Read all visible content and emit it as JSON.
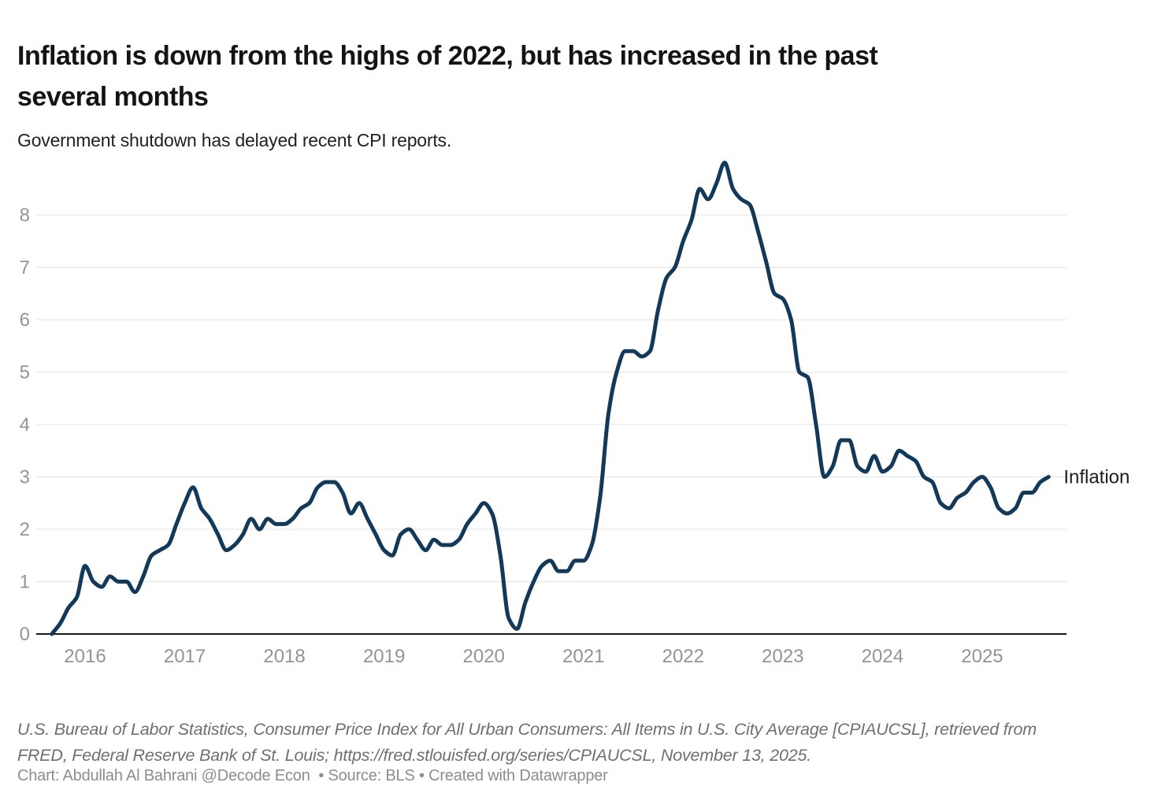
{
  "header": {
    "title": "Inflation is down from the highs of 2022, but has increased in the past several months",
    "title_lines": [
      "Inflation is down from the highs of 2022, but has increased in the past",
      "several months"
    ],
    "subtitle": "Government shutdown has delayed recent CPI reports."
  },
  "chart_data": {
    "type": "line",
    "title": "Inflation is down from the highs of 2022, but has increased in the past several months",
    "subtitle": "Government shutdown has delayed recent CPI reports.",
    "xlabel": "",
    "ylabel": "",
    "x_start": "2015-09",
    "x_end": "2025-09",
    "frequency": "monthly",
    "x_ticks": [
      "2016",
      "2017",
      "2018",
      "2019",
      "2020",
      "2021",
      "2022",
      "2023",
      "2024",
      "2025"
    ],
    "y_ticks": [
      0,
      1,
      2,
      3,
      4,
      5,
      6,
      7,
      8
    ],
    "ylim": [
      0,
      9.3
    ],
    "grid": "horizontal",
    "legend_position": "end-of-line-label",
    "colors": {
      "line": "#12395a",
      "grid": "#e3e3e3",
      "axis": "#1a1a1a",
      "tick_label": "#949494",
      "series_label": "#1c1c1c"
    },
    "series": [
      {
        "name": "Inflation",
        "color": "#12395a",
        "values": [
          0.0,
          0.2,
          0.5,
          0.7,
          1.3,
          1.0,
          0.9,
          1.1,
          1.0,
          1.0,
          0.8,
          1.1,
          1.5,
          1.6,
          1.7,
          2.1,
          2.5,
          2.8,
          2.4,
          2.2,
          1.9,
          1.6,
          1.7,
          1.9,
          2.2,
          2.0,
          2.2,
          2.1,
          2.1,
          2.2,
          2.4,
          2.5,
          2.8,
          2.9,
          2.9,
          2.7,
          2.3,
          2.5,
          2.2,
          1.9,
          1.6,
          1.5,
          1.9,
          2.0,
          1.8,
          1.6,
          1.8,
          1.7,
          1.7,
          1.8,
          2.1,
          2.3,
          2.5,
          2.3,
          1.5,
          0.3,
          0.1,
          0.6,
          1.0,
          1.3,
          1.4,
          1.2,
          1.2,
          1.4,
          1.4,
          1.7,
          2.6,
          4.2,
          5.0,
          5.4,
          5.4,
          5.3,
          5.4,
          6.2,
          6.8,
          7.0,
          7.5,
          7.9,
          8.5,
          8.3,
          8.6,
          9.0,
          8.5,
          8.3,
          8.2,
          7.7,
          7.1,
          6.5,
          6.4,
          6.0,
          5.0,
          4.9,
          4.0,
          3.0,
          3.2,
          3.7,
          3.7,
          3.2,
          3.1,
          3.4,
          3.1,
          3.2,
          3.5,
          3.4,
          3.3,
          3.0,
          2.9,
          2.5,
          2.4,
          2.6,
          2.7,
          2.9,
          3.0,
          2.8,
          2.4,
          2.3,
          2.4,
          2.7,
          2.7,
          2.9,
          3.0
        ]
      }
    ]
  },
  "footer": {
    "source_lines": [
      "U.S. Bureau of Labor Statistics, Consumer Price Index for All Urban Consumers: All Items in U.S. City Average [CPIAUCSL], retrieved from",
      "FRED, Federal Reserve Bank of St. Louis; https://fred.stlouisfed.org/series/CPIAUCSL, November 13, 2025."
    ],
    "source_note": "U.S. Bureau of Labor Statistics, Consumer Price Index for All Urban Consumers: All Items in U.S. City Average [CPIAUCSL], retrieved from FRED, Federal Reserve Bank of St. Louis; https://fred.stlouisfed.org/series/CPIAUCSL, November 13, 2025.",
    "credit": "Chart: Abdullah Al Bahrani @Decode Econ  • Source: BLS • Created with Datawrapper"
  }
}
